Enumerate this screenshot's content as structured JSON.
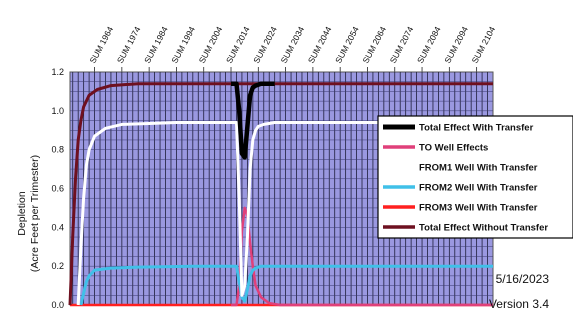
{
  "chart_data": {
    "type": "line",
    "title": "",
    "xlabel": "",
    "ylabel": "Depletion\n(Acre Feet per Trimester)",
    "ylim": [
      0,
      1.2
    ],
    "yticks": [
      "0.0",
      "0.2",
      "0.4",
      "0.6",
      "0.8",
      "1.0",
      "1.2"
    ],
    "xlim": [
      1955,
      2110
    ],
    "x_tick_positions": [
      1964,
      1974,
      1984,
      1994,
      2004,
      2014,
      2024,
      2034,
      2044,
      2054,
      2064,
      2074,
      2084,
      2094,
      2104
    ],
    "x_tick_labels": [
      "SUM 1964",
      "SUM 1974",
      "SUM 1984",
      "SUM 1994",
      "SUM 2004",
      "SUM 2014",
      "SUM 2024",
      "SUM 2034",
      "SUM 2044",
      "SUM 2054",
      "SUM 2064",
      "SUM 2074",
      "SUM 2084",
      "SUM 2094",
      "SUM 2104"
    ],
    "grid": true,
    "legend_position": "right",
    "plot_background": "#9a98e0",
    "series": [
      {
        "name": "Total Effect Without Transfer",
        "color": "#6e1020",
        "x": [
          1955,
          1956,
          1957,
          1958,
          1959,
          1960,
          1962,
          1965,
          1970,
          1975,
          1980,
          1990,
          2000,
          2010,
          2020,
          2030,
          2060,
          2090,
          2110
        ],
        "y": [
          0,
          0.35,
          0.65,
          0.85,
          0.95,
          1.02,
          1.08,
          1.11,
          1.13,
          1.135,
          1.14,
          1.14,
          1.14,
          1.14,
          1.14,
          1.14,
          1.14,
          1.14,
          1.14
        ]
      },
      {
        "name": "Total Effect With Transfer",
        "color": "#000000",
        "x": [
          2014,
          2016,
          2017,
          2018,
          2019,
          2020,
          2021,
          2022,
          2023,
          2025,
          2030
        ],
        "y": [
          1.14,
          1.14,
          1.0,
          0.78,
          0.76,
          0.92,
          1.08,
          1.12,
          1.13,
          1.14,
          1.14
        ]
      },
      {
        "name": "TO Well Effects",
        "color": "#e0407a",
        "x": [
          2014,
          2016,
          2017,
          2018,
          2019,
          2020,
          2021,
          2022,
          2023,
          2025,
          2028,
          2032,
          2040,
          2110
        ],
        "y": [
          0,
          0,
          0.1,
          0.38,
          0.5,
          0.46,
          0.32,
          0.2,
          0.1,
          0.04,
          0.01,
          0,
          0,
          0
        ]
      },
      {
        "name": "FROM1 Well With Transfer",
        "color": "#ffffff",
        "x": [
          1958,
          1959,
          1960,
          1961,
          1962,
          1964,
          1968,
          1974,
          1984,
          1994,
          2004,
          2014,
          2016,
          2017,
          2018,
          2019,
          2020,
          2021,
          2022,
          2023,
          2024,
          2026,
          2030,
          2040,
          2060,
          2080,
          2110
        ],
        "y": [
          0,
          0.3,
          0.55,
          0.72,
          0.8,
          0.87,
          0.91,
          0.93,
          0.935,
          0.94,
          0.94,
          0.94,
          0.94,
          0.55,
          0.05,
          0.1,
          0.35,
          0.7,
          0.85,
          0.9,
          0.92,
          0.93,
          0.94,
          0.94,
          0.94,
          0.94,
          0.94
        ]
      },
      {
        "name": "FROM2 Well With Transfer",
        "color": "#40c0e8",
        "x": [
          1959,
          1960,
          1961,
          1962,
          1964,
          1970,
          1980,
          2000,
          2014,
          2016,
          2017,
          2018,
          2019,
          2020,
          2021,
          2022,
          2023,
          2025,
          2030,
          2060,
          2110
        ],
        "y": [
          0,
          0.06,
          0.12,
          0.15,
          0.18,
          0.19,
          0.195,
          0.2,
          0.2,
          0.2,
          0.12,
          0.04,
          0.02,
          0.08,
          0.15,
          0.18,
          0.19,
          0.2,
          0.2,
          0.2,
          0.2
        ]
      },
      {
        "name": "FROM3 Well With Transfer",
        "color": "#ff2020",
        "x": [
          1955,
          2110
        ],
        "y": [
          0,
          0
        ]
      }
    ]
  },
  "footer": {
    "date": "5/16/2023",
    "version": "Version 3.4"
  }
}
